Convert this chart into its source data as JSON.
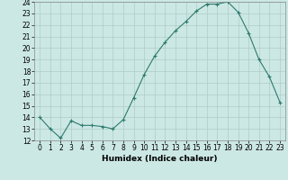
{
  "x": [
    0,
    1,
    2,
    3,
    4,
    5,
    6,
    7,
    8,
    9,
    10,
    11,
    12,
    13,
    14,
    15,
    16,
    17,
    18,
    19,
    20,
    21,
    22,
    23
  ],
  "y": [
    14,
    13,
    12.2,
    13.7,
    13.3,
    13.3,
    13.2,
    13,
    13.8,
    15.7,
    17.7,
    19.3,
    20.5,
    21.5,
    22.3,
    23.2,
    23.8,
    23.8,
    24.0,
    23.1,
    21.3,
    19.0,
    17.5,
    15.3
  ],
  "line_color": "#2d7a6e",
  "marker": "+",
  "bg_color": "#cce8e4",
  "grid_color": "#b0ccc8",
  "xlabel": "Humidex (Indice chaleur)",
  "ylim": [
    12,
    24
  ],
  "xlim": [
    -0.5,
    23.5
  ],
  "yticks": [
    12,
    13,
    14,
    15,
    16,
    17,
    18,
    19,
    20,
    21,
    22,
    23,
    24
  ],
  "xticks": [
    0,
    1,
    2,
    3,
    4,
    5,
    6,
    7,
    8,
    9,
    10,
    11,
    12,
    13,
    14,
    15,
    16,
    17,
    18,
    19,
    20,
    21,
    22,
    23
  ],
  "label_fontsize": 6.5,
  "tick_fontsize": 5.5
}
